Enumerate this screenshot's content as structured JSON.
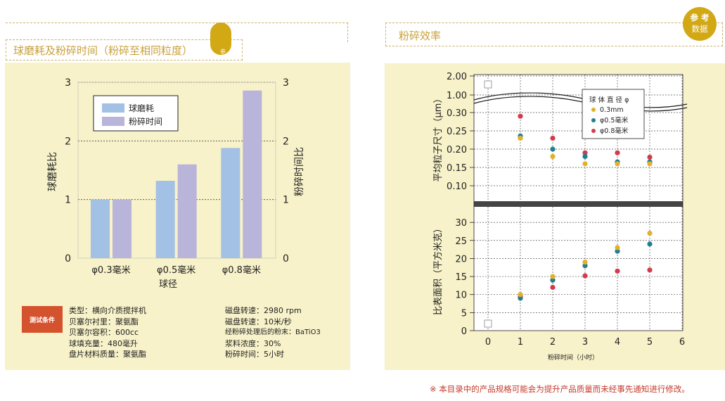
{
  "left": {
    "title": "球磨耗及粉碎时间（粉碎至相同粒度）",
    "tab_char": "参",
    "chart": {
      "ylabel_left": "球磨耗比",
      "ylabel_right": "粉碎时间比",
      "xlabel": "球径",
      "yticks": [
        "0",
        "1",
        "2",
        "3"
      ],
      "legend": [
        "球磨耗",
        "粉碎时间"
      ]
    },
    "conditions": {
      "badge": "测试条件",
      "col1": [
        "类型：横向介质搅拌机",
        "贝塞尔衬里：聚氨酯",
        "贝塞尔容积：600cc",
        "球填充量：480毫升",
        "盘片材料质量：聚氨酯"
      ],
      "col2": [
        "磁盘转速：2980 rpm",
        "磁盘转速：10米/秒",
        "经粉碎处理后的粉末：BaTiO3",
        "浆料浓度：30%",
        "粉碎时间：5小时"
      ]
    }
  },
  "right": {
    "title": "粉碎效率",
    "badge_line1": "参 考",
    "badge_line2": "数据",
    "chart": {
      "ylabel_top": "平均粒子尺寸（μm）",
      "ylabel_bottom": "比表面积（平方米克）",
      "xlabel": "粉碎时间（小时）",
      "top_yticks": [
        "2.00",
        "1.00",
        "0.30",
        "0.25",
        "0.20",
        "0.15",
        "0.10"
      ],
      "bottom_yticks": [
        "0",
        "5",
        "10",
        "15",
        "20",
        "25",
        "30"
      ],
      "xticks": [
        "0",
        "1",
        "2",
        "3",
        "4",
        "5",
        "6"
      ],
      "legend_title": "球 体 直 径 φ",
      "legend": [
        "0.3mm",
        "φ0.5毫米",
        "φ0.8毫米"
      ]
    }
  },
  "footnote": "※ 本目录中的产品规格可能会为提升产品质量而未经事先通知进行修改。",
  "colors": {
    "ball_wear": "#a3c1e4",
    "grind_time": "#b9b4da",
    "s03": "#e3b02a",
    "s05": "#1e7f92",
    "s08": "#d23c4a"
  },
  "chart_data": [
    {
      "type": "bar",
      "categories": [
        "φ0.3毫米",
        "φ0.5毫米",
        "φ0.8毫米"
      ],
      "series": [
        {
          "name": "球磨耗",
          "values": [
            1.0,
            1.32,
            1.88
          ]
        },
        {
          "name": "粉碎时间",
          "values": [
            1.0,
            1.6,
            2.86
          ]
        }
      ],
      "xlabel": "球径",
      "ylabel": "球磨耗比",
      "ylabel_right": "粉碎时间比",
      "ylim": [
        0,
        3
      ]
    },
    {
      "type": "scatter",
      "title": "粉碎效率",
      "xlabel": "粉碎时间（小时）",
      "ylabel": "平均粒子尺寸（μm）",
      "xlim": [
        0,
        6
      ],
      "x": [
        1,
        2,
        3,
        4,
        5
      ],
      "series": [
        {
          "name": "0.3mm",
          "values": [
            0.23,
            0.18,
            0.16,
            0.16,
            0.16
          ]
        },
        {
          "name": "φ0.5毫米",
          "values": [
            0.236,
            0.2,
            0.18,
            0.165,
            0.165
          ]
        },
        {
          "name": "φ0.8毫米",
          "values": [
            0.29,
            0.23,
            0.19,
            0.19,
            0.178
          ]
        }
      ]
    },
    {
      "type": "scatter",
      "xlabel": "粉碎时间（小时）",
      "ylabel": "比表面积（平方米克）",
      "xlim": [
        0,
        6
      ],
      "ylim": [
        0,
        35
      ],
      "x": [
        1,
        2,
        3,
        4,
        5
      ],
      "series": [
        {
          "name": "0.3mm",
          "values": [
            10,
            15,
            19,
            23,
            27
          ]
        },
        {
          "name": "φ0.5毫米",
          "values": [
            9,
            14,
            18,
            22,
            24
          ]
        },
        {
          "name": "φ0.8毫米",
          "values": [
            9.5,
            12,
            15.2,
            16.5,
            16.8
          ]
        }
      ]
    }
  ]
}
